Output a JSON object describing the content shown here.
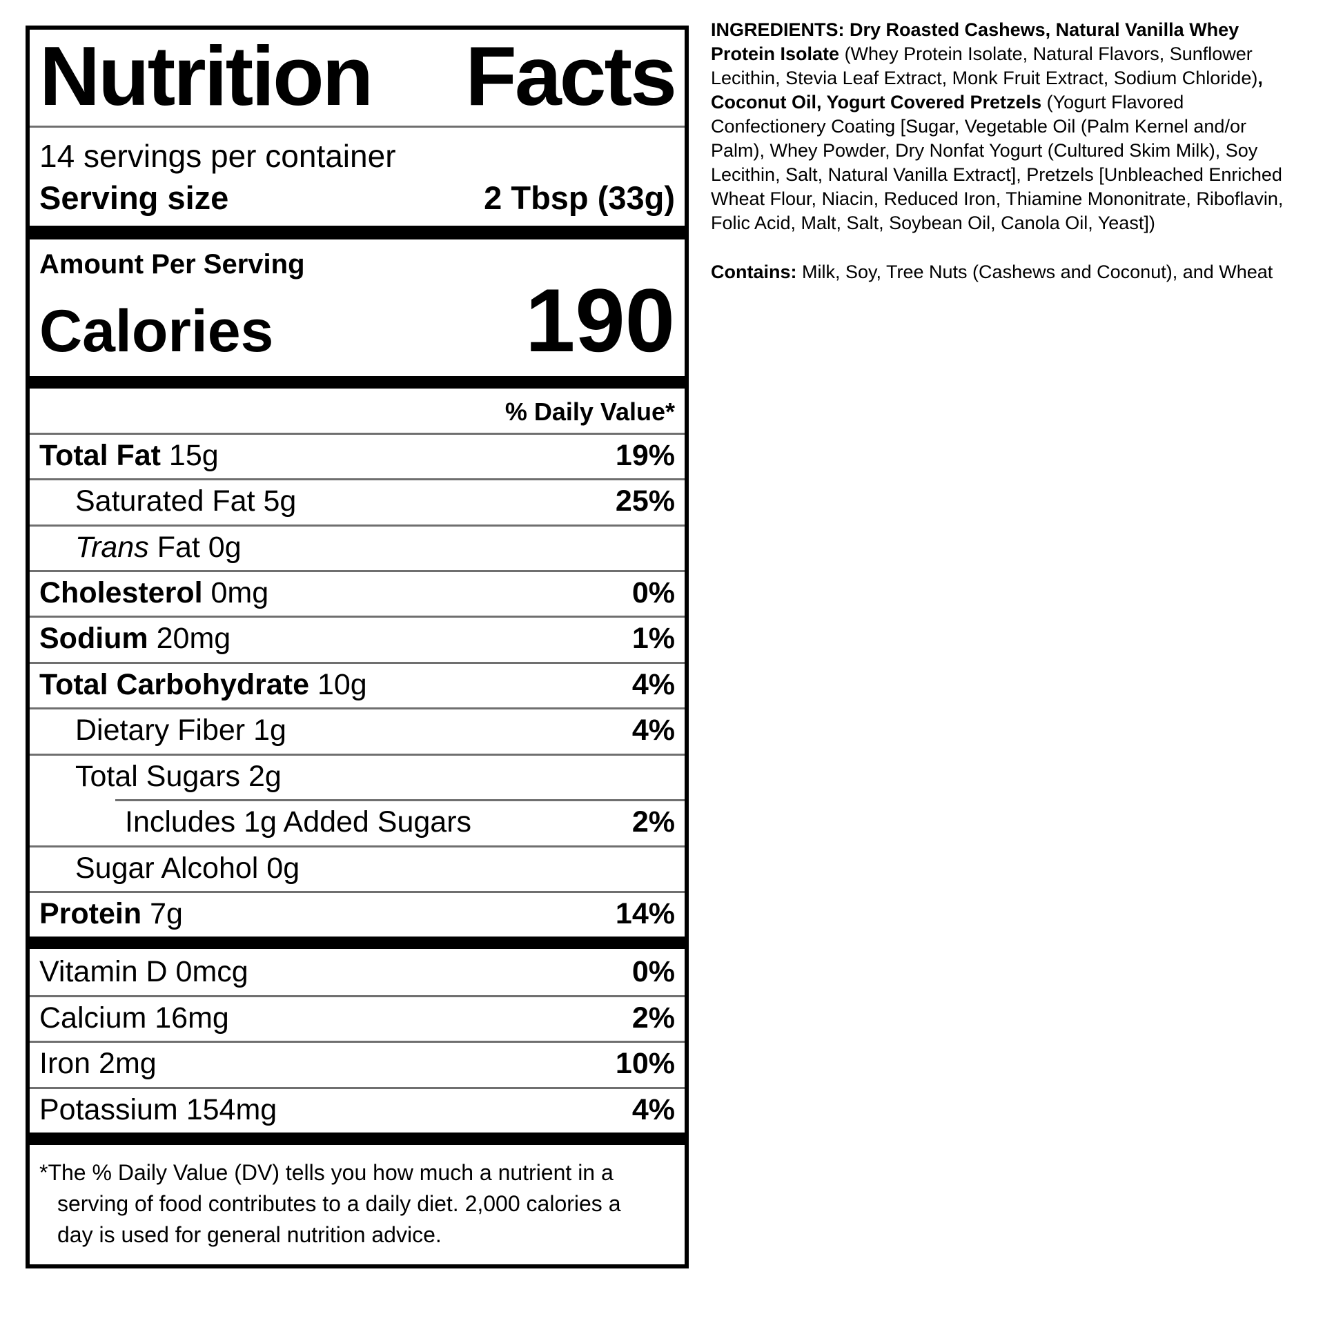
{
  "label": {
    "title_words": [
      "Nutrition",
      "Facts"
    ],
    "servings_per_container": "14 servings per container",
    "serving_size_label": "Serving size",
    "serving_size_value": "2 Tbsp (33g)",
    "amount_per_serving": "Amount Per Serving",
    "calories_label": "Calories",
    "calories_value": "190",
    "daily_value_header": "% Daily Value*",
    "main_rows": [
      {
        "n": "Total Fat",
        "a": "15g",
        "v": "19%",
        "b": true,
        "i": 0
      },
      {
        "n": "Saturated Fat",
        "a": "5g",
        "v": "25%",
        "i": 1
      },
      {
        "n_italic": "Trans",
        "n": "Fat",
        "a": "0g",
        "v": "",
        "i": 1
      },
      {
        "n": "Cholesterol",
        "a": "0mg",
        "v": "0%",
        "b": true,
        "i": 0
      },
      {
        "n": "Sodium",
        "a": "20mg",
        "v": "1%",
        "b": true,
        "i": 0
      },
      {
        "n": "Total Carbohydrate",
        "a": "10g",
        "v": "4%",
        "b": true,
        "i": 0
      },
      {
        "n": "Dietary Fiber",
        "a": "1g",
        "v": "4%",
        "i": 1
      },
      {
        "n": "Total Sugars",
        "a": "2g",
        "v": "",
        "i": 1
      },
      {
        "n": "Includes 1g Added Sugars",
        "a": "",
        "v": "2%",
        "i": 2,
        "partial": true
      },
      {
        "n": "Sugar Alcohol",
        "a": "0g",
        "v": "",
        "i": 1
      },
      {
        "n": "Protein",
        "a": "7g",
        "v": "14%",
        "b": true,
        "i": 0
      }
    ],
    "vitamin_rows": [
      {
        "n": "Vitamin D",
        "a": "0mcg",
        "v": "0%"
      },
      {
        "n": "Calcium",
        "a": "16mg",
        "v": "2%"
      },
      {
        "n": "Iron",
        "a": "2mg",
        "v": "10%"
      },
      {
        "n": "Potassium",
        "a": "154mg",
        "v": "4%"
      }
    ],
    "footnote": "*The % Daily Value (DV) tells you how much a nutrient in a\nserving of food contributes to a daily diet. 2,000 calories a\nday is used for general nutrition advice.",
    "hairline_color": "#6f6f6f",
    "ink_color": "#000000"
  },
  "ingredients": {
    "runs": [
      {
        "b": true,
        "t": "INGREDIENTS: Dry Roasted Cashews, Natural Vanilla Whey\nProtein Isolate "
      },
      {
        "b": false,
        "t": "(Whey Protein Isolate, Natural Flavors, Sunflower\nLecithin, Stevia Leaf Extract, Monk Fruit Extract, Sodium Chloride)"
      },
      {
        "b": true,
        "t": ",\nCoconut Oil, Yogurt Covered Pretzels "
      },
      {
        "b": false,
        "t": "(Yogurt Flavored\nConfectionery Coating [Sugar, Vegetable Oil (Palm Kernel and/or\nPalm), Whey Powder, Dry Nonfat Yogurt (Cultured Skim Milk), Soy\nLecithin, Salt, Natural Vanilla Extract], Pretzels [Unbleached Enriched\nWheat Flour, Niacin, Reduced Iron, Thiamine Mononitrate, Riboflavin,\nFolic Acid, Malt, Salt, Soybean Oil, Canola Oil, Yeast])"
      }
    ],
    "contains_runs": [
      {
        "b": true,
        "t": "Contains: "
      },
      {
        "b": false,
        "t": "Milk, Soy, Tree Nuts (Cashews and Coconut), and Wheat"
      }
    ]
  }
}
